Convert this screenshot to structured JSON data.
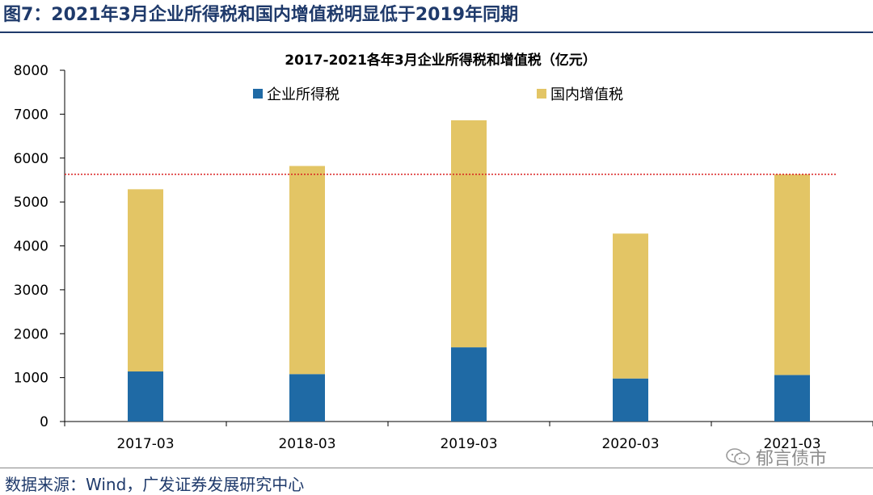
{
  "figure": {
    "title": "图7：2021年3月企业所得税和国内增值税明显低于2019年同期",
    "source": "数据来源：Wind，广发证券发展研究中心",
    "watermark": "郁言债市"
  },
  "colors": {
    "corporate": "#1f6aa5",
    "vat": "#e3c565",
    "reference_line": "#d92020",
    "title": "#1f3a6b"
  },
  "chart_data": {
    "type": "bar",
    "stacked": true,
    "title": "2017-2021各年3月企业所得税和增值税（亿元）",
    "categories": [
      "2017-03",
      "2018-03",
      "2019-03",
      "2020-03",
      "2021-03"
    ],
    "series": [
      {
        "name": "企业所得税",
        "values": [
          1140,
          1080,
          1690,
          980,
          1060
        ]
      },
      {
        "name": "国内增值税",
        "values": [
          4150,
          4740,
          5170,
          3300,
          4570
        ]
      }
    ],
    "ylim": [
      0,
      8000
    ],
    "yticks": [
      0,
      1000,
      2000,
      3000,
      4000,
      5000,
      6000,
      7000,
      8000
    ],
    "reference_line": {
      "value": 5630,
      "style": "dotted"
    },
    "xlabel": "",
    "ylabel": "",
    "legend": "top"
  }
}
